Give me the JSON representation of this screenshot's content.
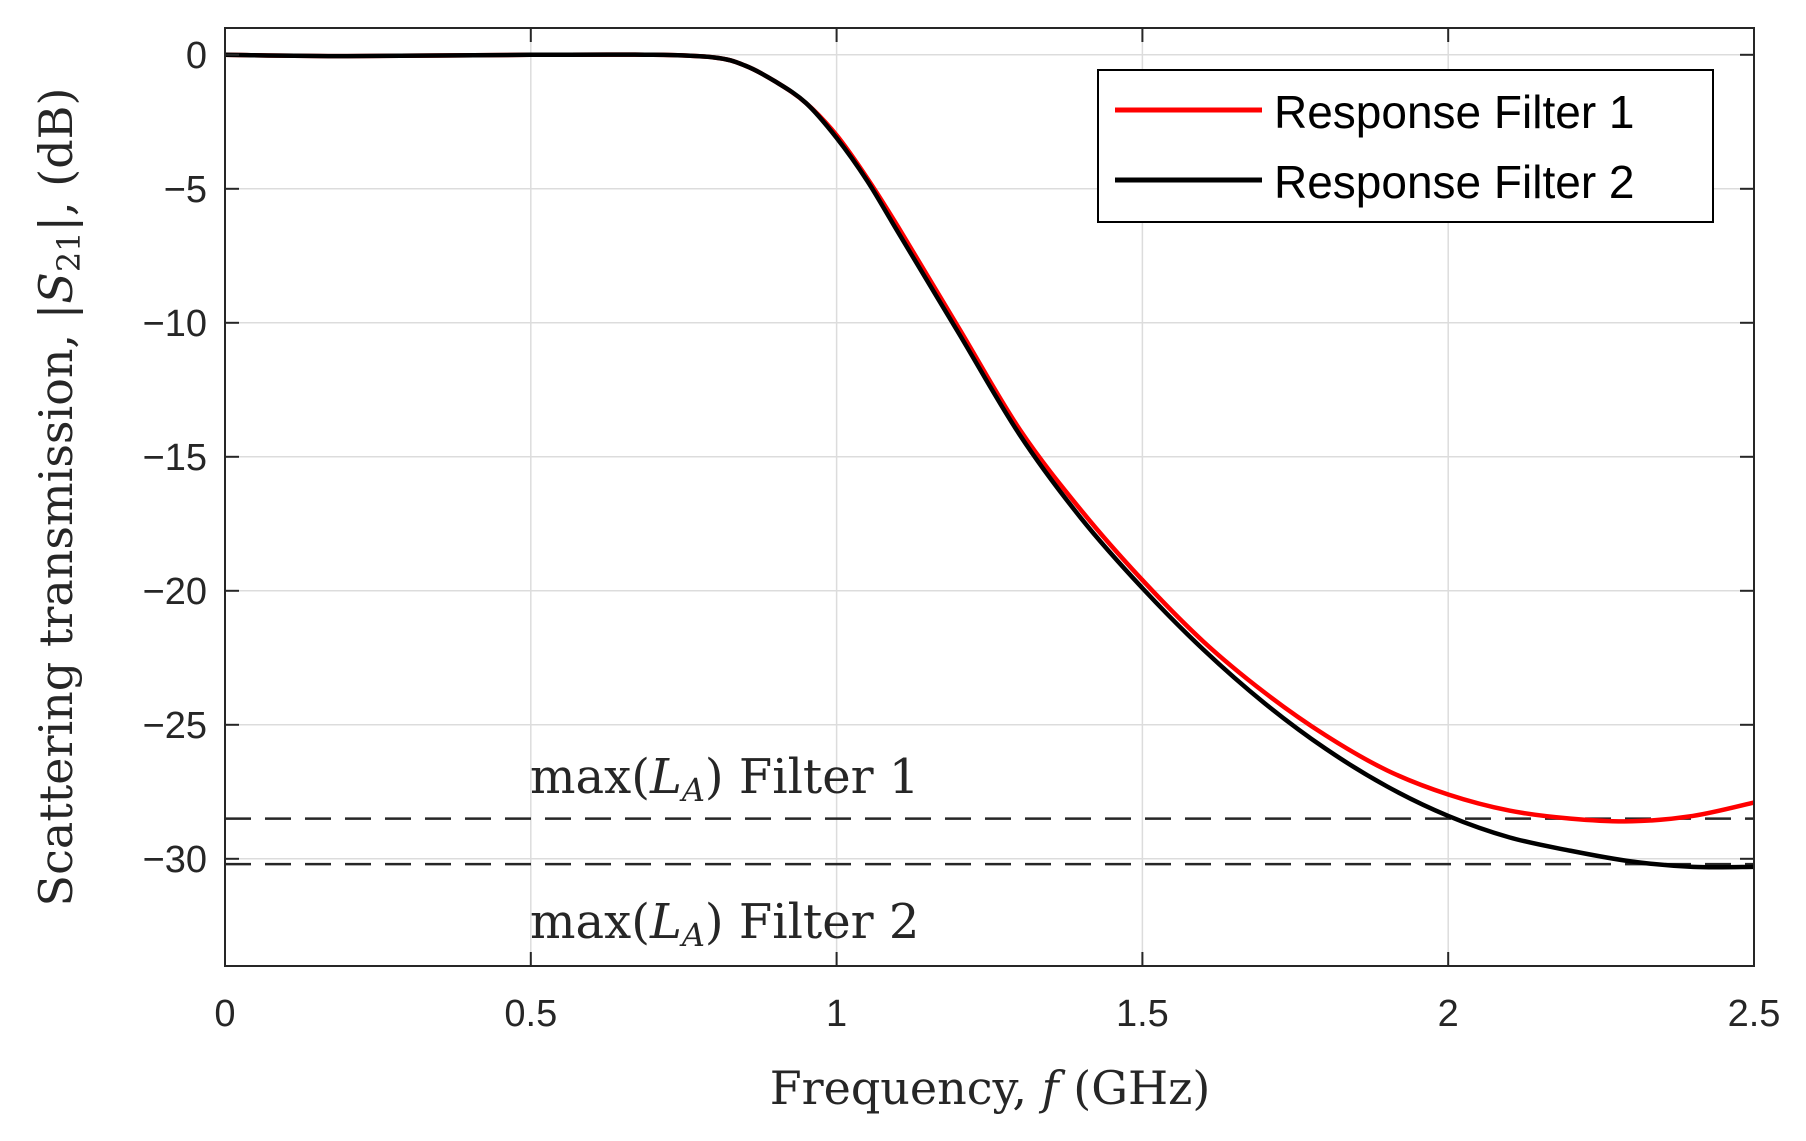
{
  "chart_data": {
    "type": "line",
    "xlabel": "Frequency, f (GHz)",
    "ylabel": "Scattering transmission, |S21|, (dB)",
    "xlim": [
      0,
      2.5
    ],
    "ylim": [
      -34,
      1
    ],
    "grid": true,
    "legend_position": "top-right",
    "x_ticks": [
      0,
      0.5,
      1,
      1.5,
      2,
      2.5
    ],
    "x_tick_labels": [
      "0",
      "0.5",
      "1",
      "1.5",
      "2",
      "2.5"
    ],
    "y_ticks": [
      0,
      -5,
      -10,
      -15,
      -20,
      -25,
      -30
    ],
    "y_tick_labels": [
      "0",
      "−5",
      "−10",
      "−15",
      "−20",
      "−25",
      "−30"
    ],
    "series": [
      {
        "name": "Response Filter 1",
        "color": "#ff0000",
        "x": [
          0,
          0.2,
          0.5,
          0.7,
          0.8,
          0.85,
          0.9,
          0.95,
          1.0,
          1.05,
          1.1,
          1.2,
          1.3,
          1.4,
          1.5,
          1.6,
          1.7,
          1.8,
          1.9,
          2.0,
          2.1,
          2.2,
          2.3,
          2.4,
          2.5
        ],
        "values": [
          0,
          -0.05,
          0,
          0,
          -0.1,
          -0.4,
          -1.0,
          -1.8,
          -3.0,
          -4.6,
          -6.4,
          -10.2,
          -14.0,
          -17.0,
          -19.6,
          -21.9,
          -23.8,
          -25.4,
          -26.7,
          -27.6,
          -28.2,
          -28.5,
          -28.6,
          -28.4,
          -27.9
        ]
      },
      {
        "name": "Response Filter 2",
        "color": "#000000",
        "x": [
          0,
          0.2,
          0.5,
          0.7,
          0.8,
          0.85,
          0.9,
          0.95,
          1.0,
          1.05,
          1.1,
          1.2,
          1.3,
          1.4,
          1.5,
          1.6,
          1.7,
          1.8,
          1.9,
          2.0,
          2.1,
          2.2,
          2.3,
          2.4,
          2.5
        ],
        "values": [
          0,
          -0.05,
          0,
          0,
          -0.1,
          -0.4,
          -1.0,
          -1.8,
          -3.1,
          -4.7,
          -6.6,
          -10.4,
          -14.2,
          -17.3,
          -19.9,
          -22.2,
          -24.2,
          -25.9,
          -27.3,
          -28.4,
          -29.2,
          -29.7,
          -30.1,
          -30.3,
          -30.3
        ]
      }
    ],
    "reference_lines": [
      {
        "label": "max(L_A) Filter 1",
        "y": -28.5
      },
      {
        "label": "max(L_A) Filter 2",
        "y": -30.2
      }
    ]
  },
  "annotations": {
    "filter1_prefix": "max(",
    "filter1_var": "L",
    "filter1_sub": "A",
    "filter1_suffix": ") Filter 1",
    "filter2_prefix": "max(",
    "filter2_var": "L",
    "filter2_sub": "A",
    "filter2_suffix": ") Filter 2"
  },
  "axis_title_parts": {
    "x_prefix": "Frequency, ",
    "x_var": "f",
    "x_suffix": " (GHz)",
    "y_prefix": "Scattering transmission, |",
    "y_var": "S",
    "y_sub": "21",
    "y_suffix": "|, (dB)"
  }
}
